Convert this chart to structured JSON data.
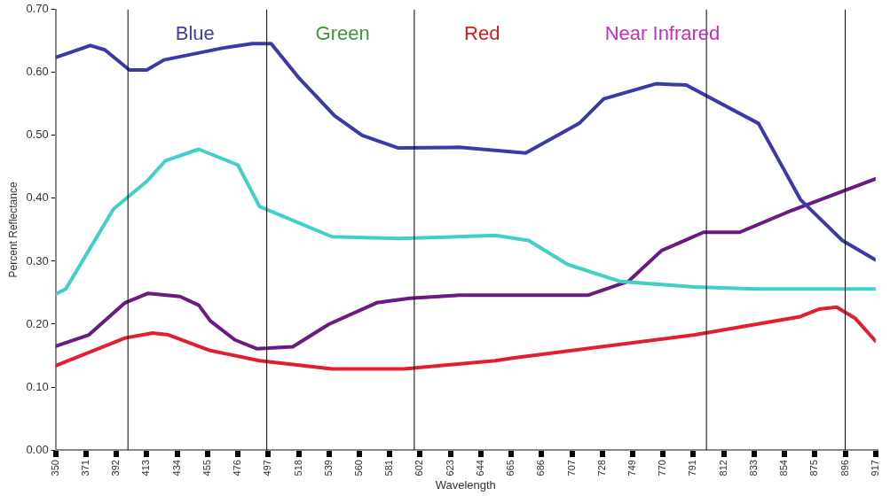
{
  "chart_data": {
    "type": "line",
    "xlabel": "Wavelength",
    "ylabel": "Percent Reflectance",
    "xlim": [
      350,
      917
    ],
    "xticks": [
      350,
      371,
      392,
      413,
      434,
      455,
      476,
      497,
      518,
      539,
      560,
      581,
      602,
      623,
      644,
      665,
      686,
      707,
      728,
      749,
      770,
      791,
      812,
      833,
      854,
      875,
      896,
      917
    ],
    "ylim": [
      0,
      0.7
    ],
    "yticks": [
      {
        "value": 0,
        "label": "0.00"
      },
      {
        "value": 0.1,
        "label": "0.10"
      },
      {
        "value": 0.2,
        "label": "0.20"
      },
      {
        "value": 0.3,
        "label": "0.30"
      },
      {
        "value": 0.4,
        "label": "0.40"
      },
      {
        "value": 0.5,
        "label": "0.50"
      },
      {
        "value": 0.6,
        "label": "0.60"
      },
      {
        "value": 0.7,
        "label": "0.70"
      }
    ],
    "marker": "none",
    "line_style": "solid",
    "series": [
      {
        "color": "#3a3aa8",
        "x": [
          350,
          374,
          384,
          401,
          413,
          425,
          466,
          486,
          499,
          518,
          543,
          562,
          587,
          629,
          675,
          712,
          729,
          765,
          786,
          836,
          865,
          894,
          917
        ],
        "values": [
          0.624,
          0.643,
          0.636,
          0.604,
          0.604,
          0.62,
          0.639,
          0.646,
          0.646,
          0.592,
          0.531,
          0.5,
          0.48,
          0.481,
          0.472,
          0.519,
          0.558,
          0.582,
          0.58,
          0.519,
          0.398,
          0.333,
          0.302
        ]
      },
      {
        "color": "#40d0c8",
        "x": [
          350,
          357,
          390,
          413,
          426,
          449,
          476,
          491,
          541,
          587,
          654,
          677,
          704,
          740,
          792,
          834,
          917
        ],
        "values": [
          0.248,
          0.256,
          0.383,
          0.427,
          0.46,
          0.478,
          0.453,
          0.387,
          0.339,
          0.336,
          0.341,
          0.333,
          0.295,
          0.268,
          0.259,
          0.256,
          0.256
        ]
      },
      {
        "color": "#6a1a80",
        "x": [
          350,
          373,
          398,
          414,
          436,
          449,
          457,
          474,
          489,
          514,
          539,
          572,
          595,
          629,
          718,
          746,
          769,
          798,
          823,
          855,
          917
        ],
        "values": [
          0.165,
          0.183,
          0.234,
          0.249,
          0.244,
          0.23,
          0.205,
          0.175,
          0.161,
          0.164,
          0.2,
          0.234,
          0.241,
          0.246,
          0.246,
          0.268,
          0.317,
          0.346,
          0.346,
          0.377,
          0.431
        ]
      },
      {
        "color": "#e02030",
        "x": [
          350,
          398,
          417,
          428,
          457,
          491,
          541,
          591,
          654,
          666,
          792,
          865,
          878,
          890,
          903,
          917
        ],
        "values": [
          0.134,
          0.178,
          0.186,
          0.183,
          0.158,
          0.142,
          0.129,
          0.129,
          0.142,
          0.146,
          0.183,
          0.212,
          0.224,
          0.227,
          0.209,
          0.173
        ]
      }
    ],
    "ref_lines": [
      {
        "axis": "x",
        "value": 400,
        "color": "#000000"
      },
      {
        "axis": "x",
        "value": 496,
        "color": "#000000"
      },
      {
        "axis": "x",
        "value": 598,
        "color": "#000000"
      },
      {
        "axis": "x",
        "value": 800,
        "color": "#000000"
      },
      {
        "axis": "x",
        "value": 896,
        "color": "#000000"
      }
    ],
    "annotations": [
      "Blue",
      "Green",
      "Red",
      "Near Infrared"
    ]
  }
}
